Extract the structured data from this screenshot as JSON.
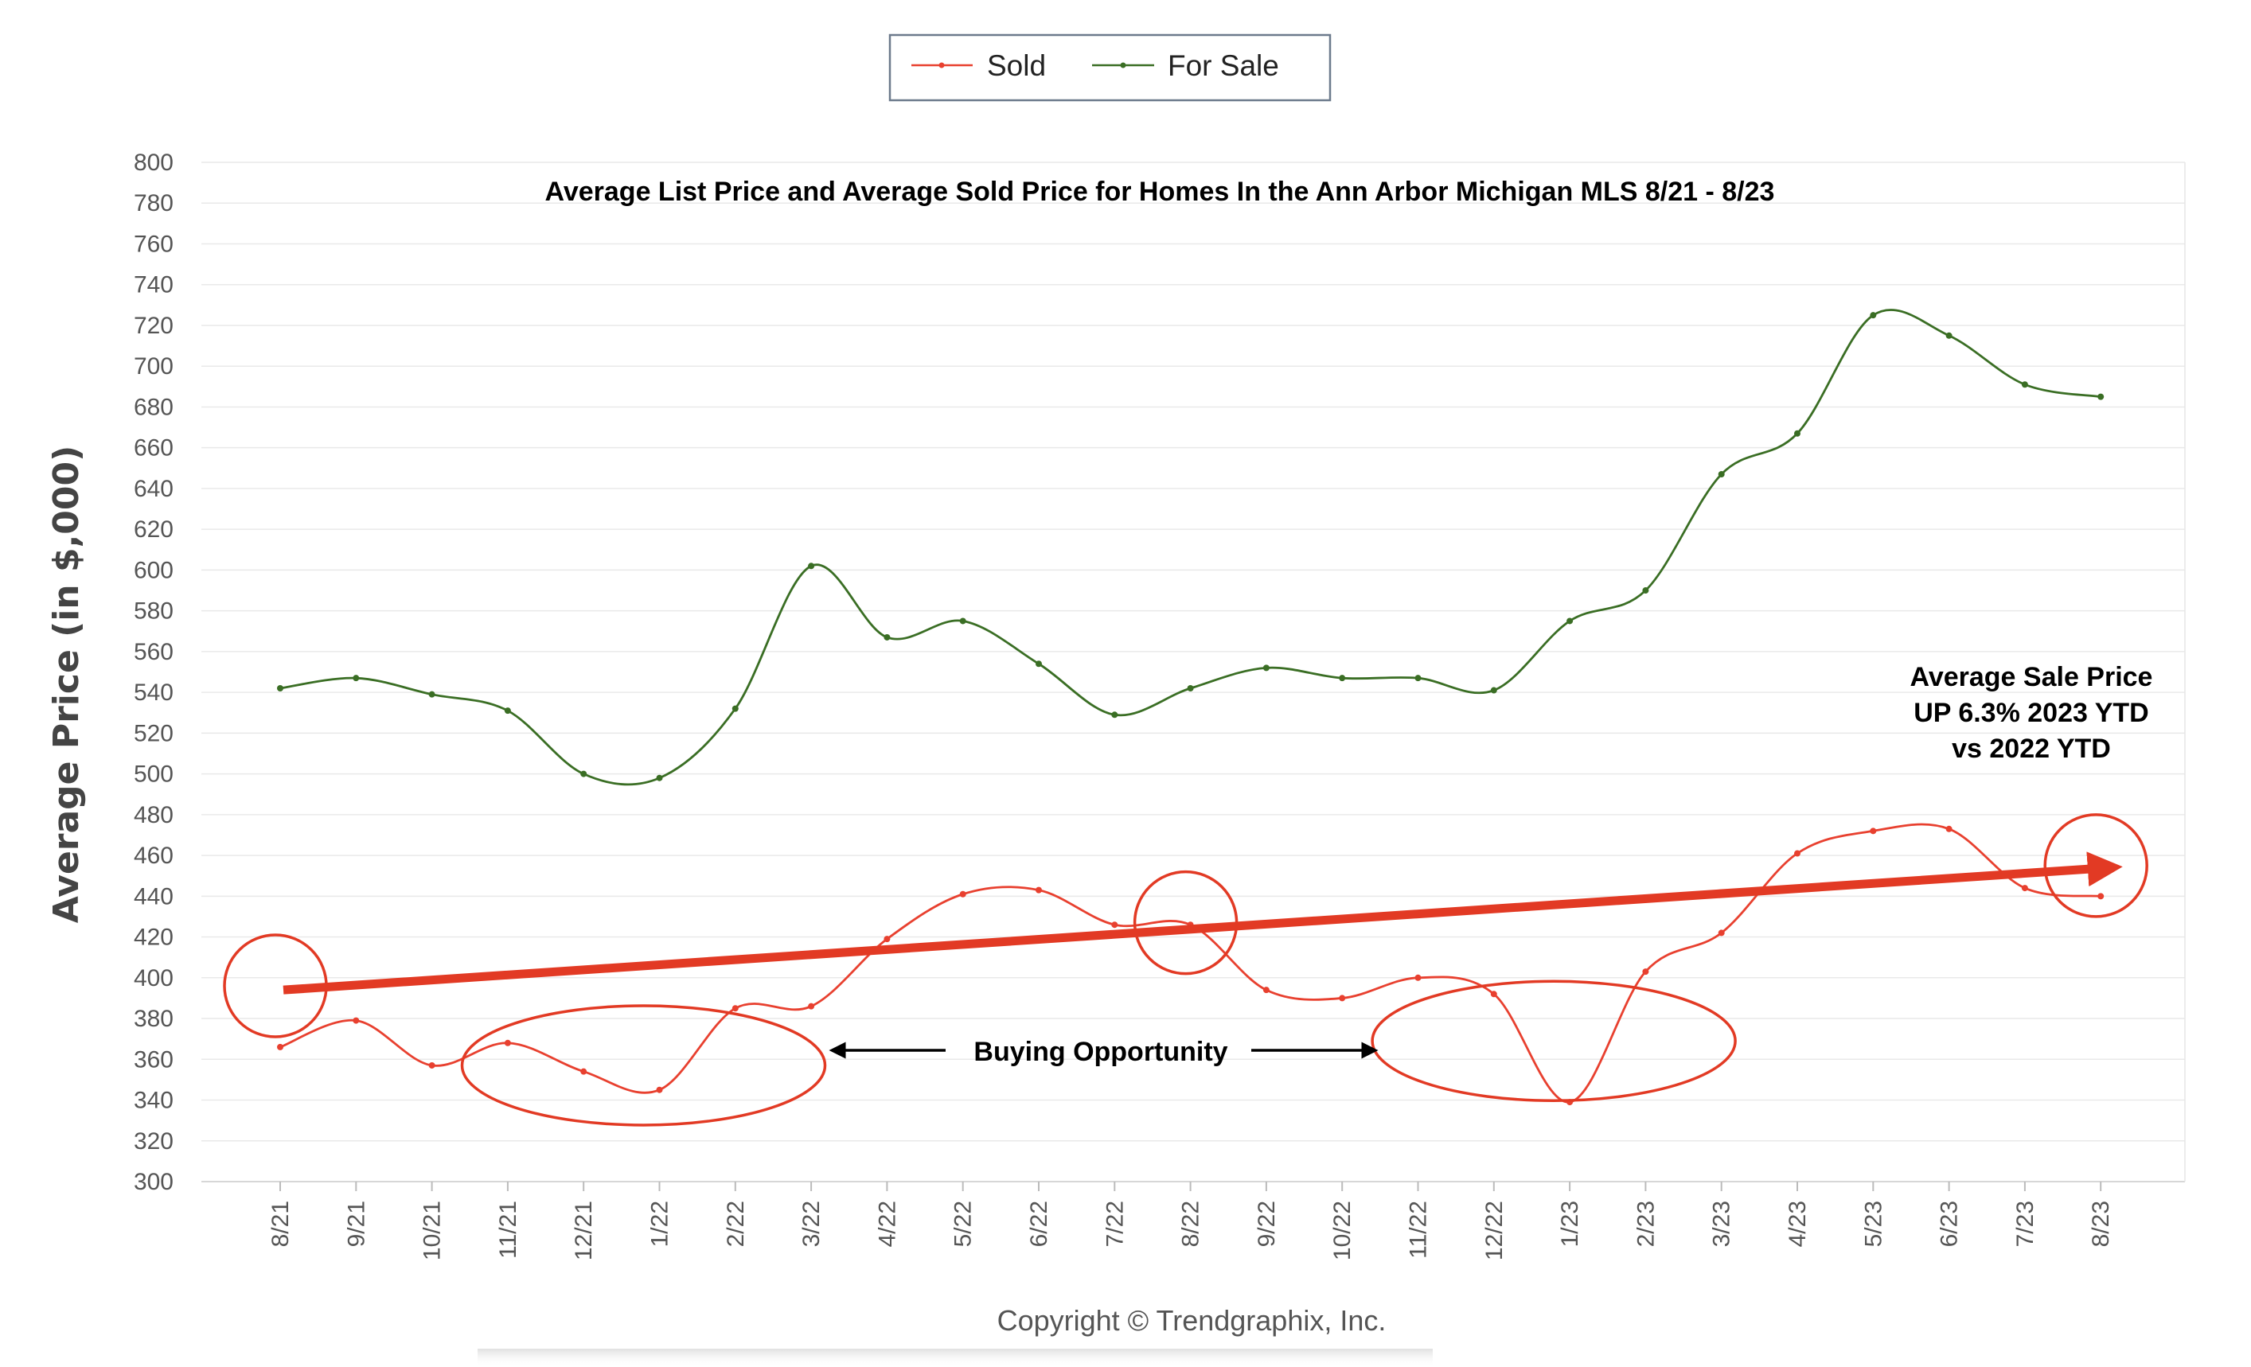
{
  "legend": {
    "sold_label": "Sold",
    "for_sale_label": "For Sale"
  },
  "annotations": {
    "buying_opportunity": "Buying Opportunity",
    "sale_price_lines": [
      "Average Sale Price",
      "UP 6.3% 2023 YTD",
      "vs 2022 YTD"
    ]
  },
  "copyright": "Copyright © Trendgraphix, Inc.",
  "colors": {
    "sold": "#e8402f",
    "for_sale": "#3a6e24",
    "annotation": "#e23a24"
  },
  "chart_data": {
    "type": "line",
    "title": "Average List Price and Average Sold Price for Homes In the Ann Arbor Michigan MLS 8/21 - 8/23",
    "xlabel": "",
    "ylabel": "Average Price (in $,000)",
    "ylim": [
      300,
      800
    ],
    "ytick_step": 20,
    "grid": true,
    "legend_position": "top-center",
    "categories": [
      "8/21",
      "9/21",
      "10/21",
      "11/21",
      "12/21",
      "1/22",
      "2/22",
      "3/22",
      "4/22",
      "5/22",
      "6/22",
      "7/22",
      "8/22",
      "9/22",
      "10/22",
      "11/22",
      "12/22",
      "1/23",
      "2/23",
      "3/23",
      "4/23",
      "5/23",
      "6/23",
      "7/23",
      "8/23"
    ],
    "series": [
      {
        "name": "Sold",
        "color": "#e8402f",
        "values": [
          366,
          379,
          357,
          368,
          354,
          345,
          385,
          386,
          419,
          441,
          443,
          426,
          426,
          394,
          390,
          400,
          392,
          339,
          403,
          422,
          461,
          472,
          473,
          444,
          440
        ]
      },
      {
        "name": "For Sale",
        "color": "#3a6e24",
        "values": [
          542,
          547,
          539,
          531,
          500,
          498,
          532,
          602,
          567,
          575,
          554,
          529,
          542,
          552,
          547,
          547,
          541,
          575,
          590,
          647,
          667,
          725,
          715,
          691,
          685
        ]
      }
    ],
    "trend_arrow": {
      "from": {
        "category": "8/21",
        "value": 394
      },
      "to": {
        "category": "8/23",
        "value": 454
      }
    },
    "highlight_circles": [
      {
        "category": "8/21",
        "value": 396
      },
      {
        "category": "8/22",
        "value": 427
      },
      {
        "category": "8/23",
        "value": 455
      }
    ],
    "highlight_ellipses": [
      {
        "center_category": "1/22",
        "value": 357
      },
      {
        "center_category": "1/23",
        "value": 369
      }
    ]
  }
}
